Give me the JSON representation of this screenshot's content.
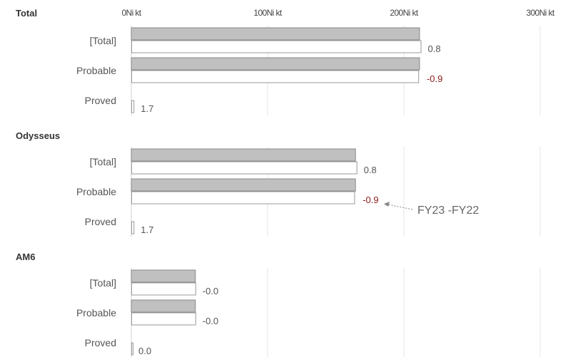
{
  "chart_data": {
    "type": "bar",
    "orientation": "horizontal",
    "xlim": [
      0,
      300
    ],
    "x_ticks": [
      "0Ni kt",
      "100Ni kt",
      "200Ni kt",
      "300Ni kt"
    ],
    "tick_values": [
      0,
      100,
      200,
      300
    ],
    "grid": true,
    "colors": {
      "prior_fill": "#c0c0c0",
      "prior_stroke": "#888888",
      "current_fill": "#ffffff",
      "current_stroke": "#999999",
      "grid": "#e4e4e4",
      "value_positive": "#555555",
      "value_negative": "#8b1a1a"
    },
    "groups": [
      {
        "title": "Total",
        "rows": [
          {
            "label": "[Total]",
            "prior": 211.5,
            "current": 212.3,
            "value_label": "0.8"
          },
          {
            "label": "Probable",
            "prior": 211.5,
            "current": 210.6,
            "value_label": "-0.9"
          },
          {
            "label": "Proved",
            "prior": 0,
            "current": 1.7,
            "value_label": "1.7"
          }
        ]
      },
      {
        "title": "Odysseus",
        "rows": [
          {
            "label": "[Total]",
            "prior": 164.5,
            "current": 165.3,
            "value_label": "0.8"
          },
          {
            "label": "Probable",
            "prior": 164.5,
            "current": 163.6,
            "value_label": "-0.9"
          },
          {
            "label": "Proved",
            "prior": 0,
            "current": 1.7,
            "value_label": "1.7"
          }
        ]
      },
      {
        "title": "AM6",
        "rows": [
          {
            "label": "[Total]",
            "prior": 47,
            "current": 47,
            "value_label": "-0.0"
          },
          {
            "label": "Probable",
            "prior": 47,
            "current": 47,
            "value_label": "-0.0"
          },
          {
            "label": "Proved",
            "prior": 0,
            "current": 0,
            "value_label": "0.0"
          }
        ]
      }
    ],
    "annotation": {
      "text": "FY23 -FY22"
    }
  }
}
